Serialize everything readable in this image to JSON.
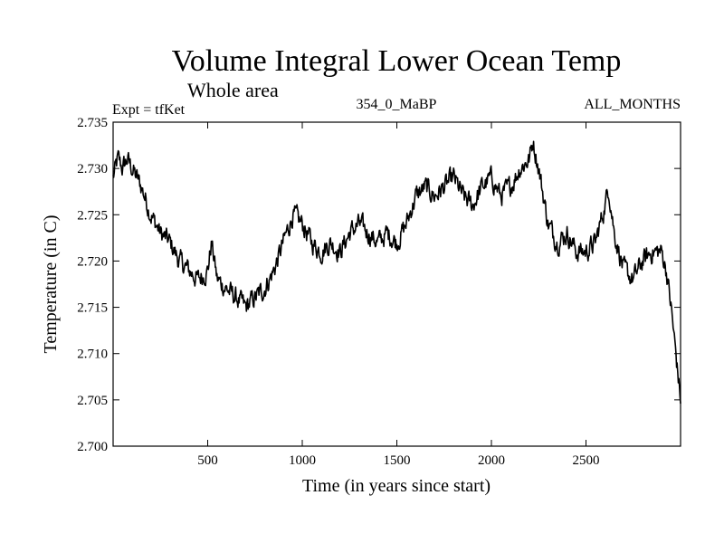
{
  "chart_data": {
    "type": "line",
    "title": "Volume Integral Lower Ocean Temp",
    "subtitle": "Whole area",
    "experiment": "Expt = tfKet",
    "run_label": "354_0_MaBP",
    "period_label": "ALL_MONTHS",
    "xlabel": "Time (in years since start)",
    "ylabel": "Temperature (in C)",
    "xlim": [
      0,
      3000
    ],
    "ylim": [
      2.7,
      2.735
    ],
    "xticks": [
      500,
      1000,
      1500,
      2000,
      2500
    ],
    "xtick_labels": [
      "500",
      "1000",
      "1500",
      "2000",
      "2500"
    ],
    "yticks": [
      2.7,
      2.705,
      2.71,
      2.715,
      2.72,
      2.725,
      2.73,
      2.735
    ],
    "ytick_labels": [
      "2.700",
      "2.705",
      "2.710",
      "2.715",
      "2.720",
      "2.725",
      "2.730",
      "2.735"
    ],
    "grid": false,
    "legend": "none",
    "line_color": "#000000",
    "series": [
      {
        "x": [
          0,
          25,
          50,
          75,
          100,
          150,
          200,
          250,
          300,
          350,
          400,
          450,
          500,
          520,
          550,
          600,
          650,
          700,
          750,
          800,
          850,
          900,
          950,
          1000,
          1050,
          1100,
          1150,
          1200,
          1250,
          1300,
          1350,
          1400,
          1450,
          1500,
          1550,
          1600,
          1650,
          1700,
          1750,
          1800,
          1850,
          1900,
          1950,
          2000,
          2050,
          2100,
          2150,
          2200,
          2220,
          2250,
          2300,
          2350,
          2400,
          2450,
          2500,
          2550,
          2600,
          2620,
          2650,
          2700,
          2750,
          2800,
          2850,
          2900,
          2925,
          2950,
          2975,
          3000
        ],
        "y": [
          2.729,
          2.731,
          2.73,
          2.731,
          2.73,
          2.728,
          2.725,
          2.723,
          2.722,
          2.72,
          2.719,
          2.718,
          2.719,
          2.722,
          2.718,
          2.717,
          2.716,
          2.715,
          2.716,
          2.717,
          2.719,
          2.722,
          2.725,
          2.724,
          2.722,
          2.721,
          2.722,
          2.721,
          2.723,
          2.724,
          2.723,
          2.722,
          2.723,
          2.722,
          2.724,
          2.727,
          2.728,
          2.727,
          2.728,
          2.729,
          2.727,
          2.726,
          2.728,
          2.729,
          2.727,
          2.728,
          2.73,
          2.731,
          2.733,
          2.73,
          2.724,
          2.722,
          2.723,
          2.721,
          2.721,
          2.722,
          2.726,
          2.728,
          2.723,
          2.719,
          2.718,
          2.72,
          2.721,
          2.721,
          2.719,
          2.715,
          2.71,
          2.705
        ],
        "noise_amplitude": 0.0013
      }
    ]
  }
}
